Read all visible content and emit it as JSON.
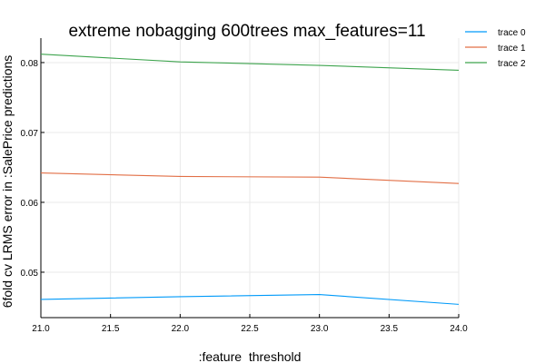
{
  "chart_data": {
    "type": "line",
    "title": "extreme nobagging 600trees max_features=11",
    "xlabel": ":feature_threshold",
    "ylabel": "6fold cv LRMS error in :SalePrice predictions",
    "xlim": [
      21.0,
      24.0
    ],
    "ylim": [
      0.0435,
      0.0835
    ],
    "x_ticks": [
      "21.0",
      "21.5",
      "22.0",
      "22.5",
      "23.0",
      "23.5",
      "24.0"
    ],
    "y_ticks": [
      "0.05",
      "0.06",
      "0.07",
      "0.08"
    ],
    "x": [
      21.0,
      22.0,
      23.0,
      24.0
    ],
    "series": [
      {
        "name": "trace 0",
        "color": "#009AF9",
        "values": [
          0.0461,
          0.0465,
          0.0468,
          0.0454
        ]
      },
      {
        "name": "trace 1",
        "color": "#E26F46",
        "values": [
          0.0642,
          0.0637,
          0.0636,
          0.0627
        ]
      },
      {
        "name": "trace 2",
        "color": "#3EA44E",
        "values": [
          0.0812,
          0.0801,
          0.0796,
          0.0789
        ]
      }
    ],
    "grid": true,
    "legend_position": "top-right"
  }
}
